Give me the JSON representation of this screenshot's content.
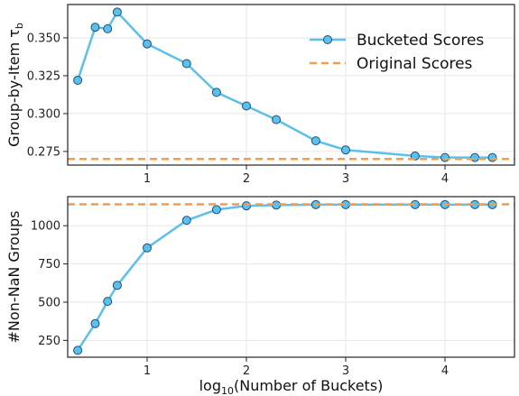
{
  "chart_data": [
    {
      "type": "line",
      "xlabel": "",
      "ylabel_main": "Group-by-Item τ",
      "ylabel_sub": "b",
      "ylim": [
        0.266,
        0.372
      ],
      "xlim": [
        0.2,
        4.7
      ],
      "grid": true,
      "legend_position": "top-right",
      "x_ticks": [
        1,
        2,
        3,
        4
      ],
      "y_ticks": [
        0.275,
        0.3,
        0.325,
        0.35
      ],
      "x_tick_labels": [
        "1",
        "2",
        "3",
        "4"
      ],
      "y_tick_labels": [
        "0.275",
        "0.300",
        "0.325",
        "0.350"
      ],
      "series": [
        {
          "name": "Bucketed Scores",
          "style": "line-marker",
          "color": "#5BC0EB",
          "x": [
            0.301,
            0.477,
            0.602,
            0.699,
            1.0,
            1.398,
            1.699,
            2.0,
            2.301,
            2.699,
            3.0,
            3.699,
            4.0,
            4.301,
            4.477
          ],
          "y": [
            0.322,
            0.357,
            0.356,
            0.367,
            0.346,
            0.333,
            0.314,
            0.305,
            0.296,
            0.282,
            0.276,
            0.272,
            0.271,
            0.271,
            0.271
          ]
        },
        {
          "name": "Original Scores",
          "style": "dashed-hline",
          "color": "#F39C4B",
          "y": 0.27
        }
      ]
    },
    {
      "type": "line",
      "xlabel_main": "log",
      "xlabel_sub": "10",
      "xlabel_rest": "(Number of Buckets)",
      "ylabel": "#Non-NaN Groups",
      "ylim": [
        140,
        1190
      ],
      "xlim": [
        0.2,
        4.7
      ],
      "grid": true,
      "x_ticks": [
        1,
        2,
        3,
        4
      ],
      "y_ticks": [
        250,
        500,
        750,
        1000
      ],
      "x_tick_labels": [
        "1",
        "2",
        "3",
        "4"
      ],
      "y_tick_labels": [
        "250",
        "500",
        "750",
        "1000"
      ],
      "series": [
        {
          "style": "line-marker",
          "color": "#5BC0EB",
          "x": [
            0.301,
            0.477,
            0.602,
            0.699,
            1.0,
            1.398,
            1.699,
            2.0,
            2.301,
            2.699,
            3.0,
            3.699,
            4.0,
            4.301,
            4.477
          ],
          "y": [
            185,
            360,
            505,
            610,
            855,
            1035,
            1105,
            1130,
            1135,
            1138,
            1138,
            1138,
            1138,
            1138,
            1138
          ]
        },
        {
          "style": "dashed-hline",
          "color": "#F39C4B",
          "y": 1140
        }
      ]
    }
  ]
}
